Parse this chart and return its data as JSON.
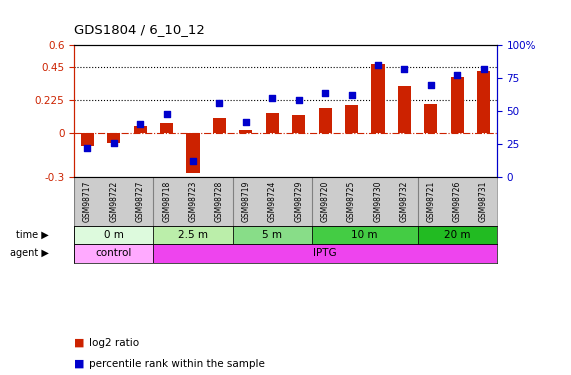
{
  "title": "GDS1804 / 6_10_12",
  "samples": [
    "GSM98717",
    "GSM98722",
    "GSM98727",
    "GSM98718",
    "GSM98723",
    "GSM98728",
    "GSM98719",
    "GSM98724",
    "GSM98729",
    "GSM98720",
    "GSM98725",
    "GSM98730",
    "GSM98732",
    "GSM98721",
    "GSM98726",
    "GSM98731"
  ],
  "log2_ratio": [
    -0.09,
    -0.07,
    0.05,
    0.07,
    -0.27,
    0.1,
    0.02,
    0.14,
    0.12,
    0.17,
    0.19,
    0.47,
    0.32,
    0.2,
    0.38,
    0.42
  ],
  "pct_rank": [
    22,
    26,
    40,
    48,
    12,
    56,
    42,
    60,
    58,
    64,
    62,
    85,
    82,
    70,
    77,
    82
  ],
  "bar_color": "#cc2200",
  "dot_color": "#0000cc",
  "ylim_left": [
    -0.3,
    0.6
  ],
  "ylim_right": [
    0,
    100
  ],
  "yticks_left": [
    -0.3,
    0.0,
    0.225,
    0.45,
    0.6
  ],
  "yticks_left_labels": [
    "-0.3",
    "0",
    "0.225",
    "0.45",
    "0.6"
  ],
  "yticks_right": [
    0,
    25,
    50,
    75,
    100
  ],
  "yticks_right_labels": [
    "0",
    "25",
    "50",
    "75",
    "100%"
  ],
  "hlines": [
    0.225,
    0.45
  ],
  "time_groups": [
    {
      "label": "0 m",
      "start": 0,
      "end": 3,
      "color": "#ddfadd"
    },
    {
      "label": "2.5 m",
      "start": 3,
      "end": 6,
      "color": "#bbeeaa"
    },
    {
      "label": "5 m",
      "start": 6,
      "end": 9,
      "color": "#88dd88"
    },
    {
      "label": "10 m",
      "start": 9,
      "end": 13,
      "color": "#44cc44"
    },
    {
      "label": "20 m",
      "start": 13,
      "end": 16,
      "color": "#22bb22"
    }
  ],
  "agent_groups": [
    {
      "label": "control",
      "start": 0,
      "end": 3,
      "color": "#ffaaff"
    },
    {
      "label": "IPTG",
      "start": 3,
      "end": 16,
      "color": "#ee44ee"
    }
  ],
  "bg_color": "#ffffff",
  "tick_color_left": "#cc2200",
  "tick_color_right": "#0000cc",
  "zero_line_color": "#cc2200",
  "label_bg": "#cccccc",
  "legend_items": [
    {
      "color": "#cc2200",
      "label": "log2 ratio"
    },
    {
      "color": "#0000cc",
      "label": "percentile rank within the sample"
    }
  ]
}
